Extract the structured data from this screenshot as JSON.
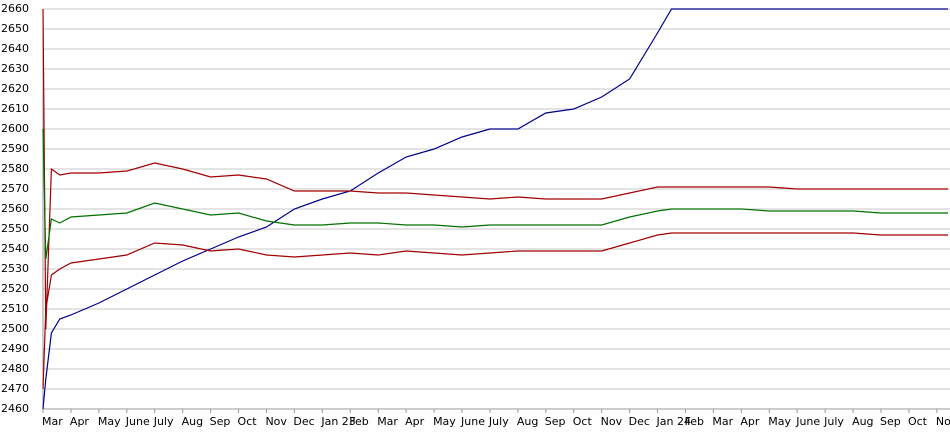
{
  "chart_data": {
    "type": "line",
    "x": [
      0,
      0.1,
      0.3,
      0.6,
      1,
      2,
      3,
      4,
      5,
      6,
      7,
      8,
      9,
      10,
      11,
      12,
      13,
      14,
      15,
      16,
      17,
      18,
      19,
      20,
      21,
      22,
      22.5,
      23,
      24,
      25,
      26,
      27,
      28,
      29,
      30,
      31,
      32,
      32.4
    ],
    "series": [
      {
        "color": "#00008b",
        "values": [
          2460,
          2475,
          2498,
          2505,
          2507,
          2513,
          2520,
          2527,
          2534,
          2540,
          2546,
          2551,
          2560,
          2565,
          2569,
          2578,
          2586,
          2590,
          2596,
          2600,
          2600,
          2608,
          2610,
          2616,
          2625,
          2648,
          2660,
          2660,
          2660,
          2660,
          2660,
          2660,
          2660,
          2660,
          2660,
          2660,
          2660,
          2660
        ]
      },
      {
        "color": "#a00000",
        "values": [
          2660,
          2500,
          2580,
          2577,
          2578,
          2578,
          2579,
          2583,
          2580,
          2576,
          2577,
          2575,
          2569,
          2569,
          2569,
          2568,
          2568,
          2567,
          2566,
          2565,
          2566,
          2565,
          2565,
          2565,
          2568,
          2571,
          2571,
          2571,
          2571,
          2571,
          2571,
          2570,
          2570,
          2570,
          2570,
          2570,
          2570,
          2570
        ]
      },
      {
        "color": "#007000",
        "values": [
          2600,
          2535,
          2555,
          2553,
          2556,
          2557,
          2558,
          2563,
          2560,
          2557,
          2558,
          2554,
          2552,
          2552,
          2553,
          2553,
          2552,
          2552,
          2551,
          2552,
          2552,
          2552,
          2552,
          2552,
          2556,
          2559,
          2560,
          2560,
          2560,
          2560,
          2559,
          2559,
          2559,
          2559,
          2558,
          2558,
          2558,
          2558
        ]
      },
      {
        "color": "#a00000",
        "values": [
          2470,
          2510,
          2527,
          2530,
          2533,
          2535,
          2537,
          2543,
          2542,
          2539,
          2540,
          2537,
          2536,
          2537,
          2538,
          2537,
          2539,
          2538,
          2537,
          2538,
          2539,
          2539,
          2539,
          2539,
          2543,
          2547,
          2548,
          2548,
          2548,
          2548,
          2548,
          2548,
          2548,
          2548,
          2547,
          2547,
          2547,
          2547
        ]
      }
    ],
    "xlim": [
      0,
      32.47
    ],
    "xticks": [
      {
        "value": 0,
        "label": "Mar"
      },
      {
        "value": 1,
        "label": "Apr"
      },
      {
        "value": 2,
        "label": "May"
      },
      {
        "value": 3,
        "label": "June"
      },
      {
        "value": 4,
        "label": "July"
      },
      {
        "value": 5,
        "label": "Aug"
      },
      {
        "value": 6,
        "label": "Sep"
      },
      {
        "value": 7,
        "label": "Oct"
      },
      {
        "value": 8,
        "label": "Nov"
      },
      {
        "value": 9,
        "label": "Dec"
      },
      {
        "value": 10,
        "label": "Jan 23"
      },
      {
        "value": 11,
        "label": "Feb"
      },
      {
        "value": 12,
        "label": "Mar"
      },
      {
        "value": 13,
        "label": "Apr"
      },
      {
        "value": 14,
        "label": "May"
      },
      {
        "value": 15,
        "label": "June"
      },
      {
        "value": 16,
        "label": "July"
      },
      {
        "value": 17,
        "label": "Aug"
      },
      {
        "value": 18,
        "label": "Sep"
      },
      {
        "value": 19,
        "label": "Oct"
      },
      {
        "value": 20,
        "label": "Nov"
      },
      {
        "value": 21,
        "label": "Dec"
      },
      {
        "value": 22,
        "label": "Jan 24"
      },
      {
        "value": 23,
        "label": "Feb"
      },
      {
        "value": 24,
        "label": "Mar"
      },
      {
        "value": 25,
        "label": "Apr"
      },
      {
        "value": 26,
        "label": "May"
      },
      {
        "value": 27,
        "label": "June"
      },
      {
        "value": 28,
        "label": "July"
      },
      {
        "value": 29,
        "label": "Aug"
      },
      {
        "value": 30,
        "label": "Sep"
      },
      {
        "value": 31,
        "label": "Oct"
      },
      {
        "value": 32,
        "label": "Nov"
      }
    ],
    "ylim": [
      2460,
      2660
    ],
    "yticks": [
      2460,
      2470,
      2480,
      2490,
      2500,
      2510,
      2520,
      2530,
      2540,
      2550,
      2560,
      2570,
      2580,
      2590,
      2600,
      2610,
      2620,
      2630,
      2640,
      2650,
      2660
    ],
    "grid": true
  }
}
